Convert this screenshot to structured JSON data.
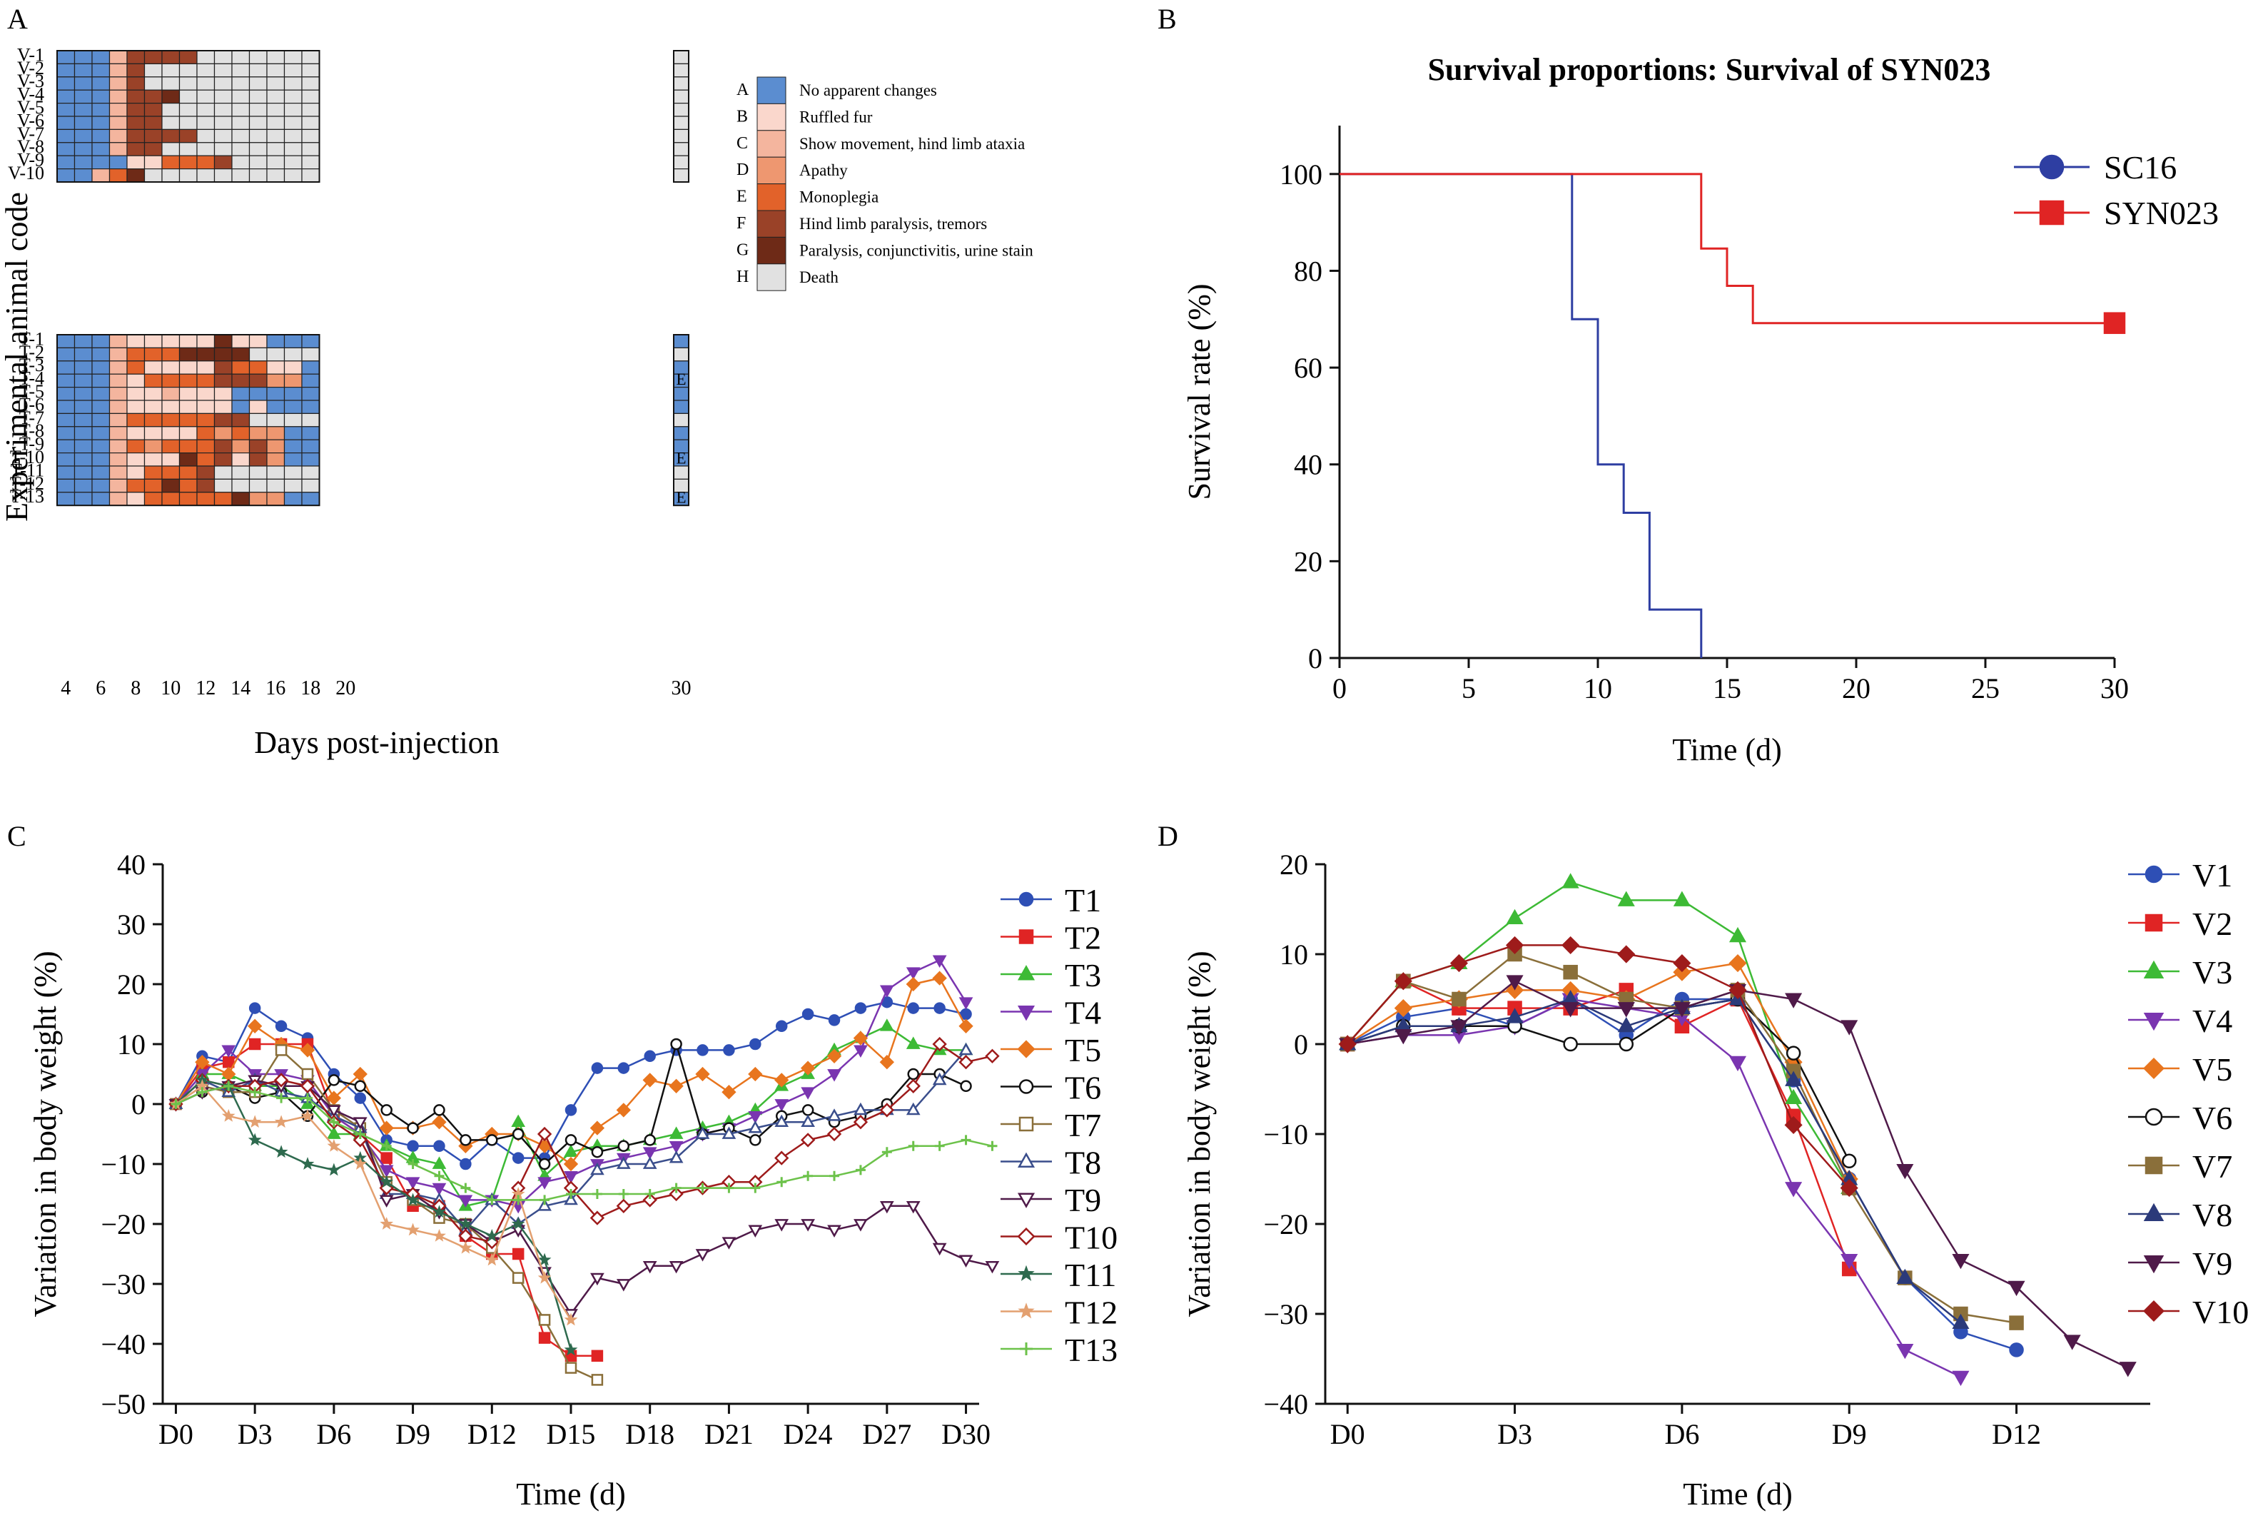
{
  "panels": {
    "a": "A",
    "b": "B",
    "c": "C",
    "d": "D"
  },
  "chart_data": [
    {
      "id": "A",
      "type": "heatmap",
      "ylabel": "Experimental animal code",
      "xlabel": "Days post-injection",
      "x_ticks": [
        "4",
        "6",
        "8",
        "10",
        "12",
        "14",
        "16",
        "18",
        "20"
      ],
      "x_tick_last": "30",
      "columns_main": 15,
      "legend": [
        {
          "code": "A",
          "label": "No apparent changes",
          "color": "#5B8DD0"
        },
        {
          "code": "B",
          "label": "Ruffled fur",
          "color": "#FAD7CC"
        },
        {
          "code": "C",
          "label": "Show movement, hind limb ataxia",
          "color": "#F4B59E"
        },
        {
          "code": "D",
          "label": "Apathy",
          "color": "#EE9770"
        },
        {
          "code": "E",
          "label": "Monoplegia",
          "color": "#E2622A"
        },
        {
          "code": "F",
          "label": "Hind limb paralysis, tremors",
          "color": "#9A4228"
        },
        {
          "code": "G",
          "label": "Paralysis, conjunctivitis, urine stain",
          "color": "#6E2A17"
        },
        {
          "code": "H",
          "label": "Death",
          "color": "#E1E1E1"
        }
      ],
      "groups": [
        {
          "rows": [
            {
              "code": "V-1",
              "cells": "AAACFFFFHHHHHHH",
              "last": "H",
              "mark": ""
            },
            {
              "code": "V-2",
              "cells": "AAACFHHHHHHHHHH",
              "last": "H",
              "mark": ""
            },
            {
              "code": "V-3",
              "cells": "AAACFHHHHHHHHHH",
              "last": "H",
              "mark": ""
            },
            {
              "code": "V-4",
              "cells": "AAACFFGHHHHHHHH",
              "last": "H",
              "mark": ""
            },
            {
              "code": "V-5",
              "cells": "AAACFFHHHHHHHHH",
              "last": "H",
              "mark": ""
            },
            {
              "code": "V-6",
              "cells": "AAACFFHHHHHHHHH",
              "last": "H",
              "mark": ""
            },
            {
              "code": "V-7",
              "cells": "AAACFFFFHHHHHHH",
              "last": "H",
              "mark": ""
            },
            {
              "code": "V-8",
              "cells": "AAACFFHHHHHHHHH",
              "last": "H",
              "mark": ""
            },
            {
              "code": "V-9",
              "cells": "AAAABBEEEFHHHHH",
              "last": "H",
              "mark": ""
            },
            {
              "code": "V-10",
              "cells": "AACEGHHHHHHHHHH",
              "last": "H",
              "mark": ""
            }
          ]
        },
        {
          "rows": [
            {
              "code": "T-1",
              "cells": "AAACBBBBBGBBAAA",
              "last": "A",
              "mark": ""
            },
            {
              "code": "T-2",
              "cells": "AAACEEEGGGGHHHH",
              "last": "H",
              "mark": ""
            },
            {
              "code": "T-3",
              "cells": "AAACEBBBBFEEBBA",
              "last": "A",
              "mark": ""
            },
            {
              "code": "T-4",
              "cells": "AAACBEEEEFFFDDA",
              "last": "A",
              "mark": "E"
            },
            {
              "code": "T-5",
              "cells": "AAACBBCBBBAAAAA",
              "last": "A",
              "mark": ""
            },
            {
              "code": "T-6",
              "cells": "AAACBBBBBBABAAA",
              "last": "A",
              "mark": ""
            },
            {
              "code": "T-7",
              "cells": "AAACEEEEEFFHHHH",
              "last": "H",
              "mark": ""
            },
            {
              "code": "T-8",
              "cells": "AAACBBBBEDEDDAA",
              "last": "A",
              "mark": ""
            },
            {
              "code": "T-9",
              "cells": "AAACEDEEEFDFDAA",
              "last": "A",
              "mark": ""
            },
            {
              "code": "T-10",
              "cells": "AAACBBBGEFBFDAA",
              "last": "A",
              "mark": "E"
            },
            {
              "code": "T-11",
              "cells": "AAACBEEEFHHHHHH",
              "last": "H",
              "mark": ""
            },
            {
              "code": "T-12",
              "cells": "AAACEEGEFHHHHHH",
              "last": "H",
              "mark": ""
            },
            {
              "code": "T-13",
              "cells": "AAACBEEEEEGDDAA",
              "last": "A",
              "mark": "E"
            }
          ]
        }
      ]
    },
    {
      "id": "B",
      "type": "line",
      "step": true,
      "title": "Survival proportions: Survival of SYN023",
      "xlabel": "Time (d)",
      "ylabel": "Survival rate (%)",
      "xlim": [
        0,
        30
      ],
      "ylim": [
        0,
        110
      ],
      "x_ticks": [
        0,
        5,
        10,
        15,
        20,
        25,
        30
      ],
      "y_ticks": [
        0,
        20,
        40,
        60,
        80,
        100
      ],
      "series": [
        {
          "name": "SC16",
          "color": "#2E3EA2",
          "marker": "circle",
          "x": [
            0,
            9,
            10,
            11,
            12,
            14
          ],
          "y": [
            100,
            70,
            40,
            30,
            10,
            0
          ]
        },
        {
          "name": "SYN023",
          "color": "#E02424",
          "marker": "square",
          "x": [
            0,
            14,
            15,
            16,
            30
          ],
          "y": [
            100,
            84.6,
            76.9,
            69.2,
            69.2
          ]
        }
      ]
    },
    {
      "id": "C",
      "type": "line",
      "xlabel": "Time (d)",
      "ylabel": "Variation in body weight (%)",
      "xlim": [
        -0.5,
        30.5
      ],
      "ylim": [
        -50,
        40
      ],
      "x_ticks": [
        0,
        3,
        6,
        9,
        12,
        15,
        18,
        21,
        24,
        27,
        30
      ],
      "x_tick_labels": [
        "D0",
        "D3",
        "D6",
        "D9",
        "D12",
        "D15",
        "D18",
        "D21",
        "D24",
        "D27",
        "D30"
      ],
      "y_ticks": [
        -50,
        -40,
        -30,
        -20,
        -10,
        0,
        10,
        20,
        30,
        40
      ],
      "series": [
        {
          "name": "T1",
          "color": "#2E4FB5",
          "marker": "circle",
          "y": [
            0,
            8,
            7,
            16,
            13,
            11,
            5,
            1,
            -6,
            -7,
            -7,
            -10,
            -6,
            -9,
            -9,
            -1,
            6,
            6,
            8,
            9,
            9,
            9,
            10,
            13,
            15,
            14,
            16,
            17,
            16,
            16,
            15
          ]
        },
        {
          "name": "T2",
          "color": "#E02424",
          "marker": "square",
          "y": [
            0,
            6,
            7,
            10,
            10,
            10,
            -2,
            -5,
            -9,
            -17,
            -17,
            -22,
            -25,
            -25,
            -39,
            -42,
            -42
          ]
        },
        {
          "name": "T3",
          "color": "#3DBA35",
          "marker": "triangle",
          "y": [
            0,
            5,
            5,
            3,
            3,
            0,
            -5,
            -5,
            -7,
            -9,
            -10,
            -17,
            -16,
            -3,
            -12,
            -8,
            -7,
            -7,
            -6,
            -5,
            -4,
            -3,
            -1,
            3,
            5,
            9,
            11,
            13,
            10,
            9,
            9
          ]
        },
        {
          "name": "T4",
          "color": "#7A35B0",
          "marker": "triangle-down",
          "y": [
            0,
            5,
            9,
            5,
            5,
            4,
            -2,
            -5,
            -11,
            -13,
            -14,
            -16,
            -16,
            -17,
            -13,
            -12,
            -10,
            -9,
            -8,
            -7,
            -5,
            -4,
            -2,
            0,
            2,
            5,
            9,
            19,
            22,
            24,
            17
          ]
        },
        {
          "name": "T5",
          "color": "#E8751E",
          "marker": "diamond",
          "y": [
            0,
            7,
            5,
            13,
            10,
            9,
            1,
            5,
            -4,
            -4,
            -3,
            -7,
            -5,
            -5,
            -7,
            -10,
            -4,
            -1,
            4,
            3,
            5,
            2,
            5,
            4,
            6,
            8,
            11,
            7,
            20,
            21,
            13
          ]
        },
        {
          "name": "T6",
          "color": "#111111",
          "marker": "open-circle",
          "y": [
            0,
            2,
            3,
            1,
            2,
            -2,
            4,
            3,
            -1,
            -4,
            -1,
            -6,
            -6,
            -5,
            -10,
            -6,
            -8,
            -7,
            -6,
            10,
            -5,
            -4,
            -6,
            -2,
            -1,
            -3,
            -2,
            0,
            5,
            5,
            3
          ]
        },
        {
          "name": "T7",
          "color": "#8A6F3A",
          "marker": "open-square",
          "y": [
            0,
            3,
            2,
            2,
            9,
            5,
            -1,
            -4,
            -13,
            -16,
            -19,
            -20,
            -24,
            -29,
            -36,
            -44,
            -46
          ]
        },
        {
          "name": "T8",
          "color": "#3A4E8C",
          "marker": "open-triangle",
          "y": [
            0,
            4,
            2,
            4,
            2,
            1,
            -2,
            -4,
            -15,
            -15,
            -16,
            -21,
            -16,
            -20,
            -17,
            -16,
            -11,
            -10,
            -10,
            -9,
            -5,
            -5,
            -4,
            -3,
            -3,
            -2,
            -1,
            -1,
            -1,
            4,
            9
          ]
        },
        {
          "name": "T9",
          "color": "#4F1A49",
          "marker": "open-triangle-down",
          "y": [
            0,
            2,
            3,
            4,
            3,
            3,
            -1,
            -3,
            -16,
            -15,
            -18,
            -20,
            -23,
            -21,
            -28,
            -35,
            -29,
            -30,
            -27,
            -27,
            -25,
            -23,
            -21,
            -20,
            -20,
            -21,
            -20,
            -17,
            -17,
            -24,
            -26,
            -27
          ]
        },
        {
          "name": "T10",
          "color": "#9E1B1B",
          "marker": "open-diamond",
          "y": [
            0,
            4,
            3,
            3,
            4,
            3,
            -3,
            -6,
            -14,
            -15,
            -17,
            -22,
            -23,
            -14,
            -5,
            -14,
            -19,
            -17,
            -16,
            -15,
            -14,
            -13,
            -13,
            -9,
            -6,
            -5,
            -3,
            -1,
            3,
            10,
            7,
            8
          ]
        },
        {
          "name": "T11",
          "color": "#2E6A4E",
          "marker": "star",
          "y": [
            0,
            4,
            3,
            -6,
            -8,
            -10,
            -11,
            -9,
            -13,
            -16,
            -18,
            -20,
            -22,
            -20,
            -26,
            -41
          ]
        },
        {
          "name": "T12",
          "color": "#E3A070",
          "marker": "star",
          "y": [
            0,
            3,
            -2,
            -3,
            -3,
            -2,
            -7,
            -10,
            -20,
            -21,
            -22,
            -24,
            -26,
            -15,
            -29,
            -36
          ]
        },
        {
          "name": "T13",
          "color": "#6CC24A",
          "marker": "plus",
          "y": [
            0,
            2,
            3,
            2,
            1,
            1,
            -3,
            -5,
            -7,
            -10,
            -12,
            -14,
            -16,
            -16,
            -16,
            -15,
            -15,
            -15,
            -15,
            -14,
            -14,
            -14,
            -14,
            -13,
            -12,
            -12,
            -11,
            -8,
            -7,
            -7,
            -6,
            -7
          ]
        }
      ]
    },
    {
      "id": "D",
      "type": "line",
      "xlabel": "Time (d)",
      "ylabel": "Variation in body weight (%)",
      "xlim": [
        -0.4,
        14.4
      ],
      "ylim": [
        -40,
        20
      ],
      "x_ticks": [
        0,
        3,
        6,
        9,
        12
      ],
      "x_tick_labels": [
        "D0",
        "D3",
        "D6",
        "D9",
        "D12"
      ],
      "y_ticks": [
        -40,
        -30,
        -20,
        -10,
        0,
        10,
        20
      ],
      "series": [
        {
          "name": "V1",
          "color": "#2E4FB5",
          "marker": "circle",
          "y": [
            0,
            3,
            4,
            2,
            5,
            1,
            5,
            5,
            -4,
            -15,
            -26,
            -32,
            -34
          ]
        },
        {
          "name": "V2",
          "color": "#E02424",
          "marker": "square",
          "y": [
            0,
            7,
            4,
            4,
            4,
            6,
            2,
            5,
            -8,
            -25
          ]
        },
        {
          "name": "V3",
          "color": "#3DBA35",
          "marker": "triangle",
          "y": [
            0,
            7,
            9,
            14,
            18,
            16,
            16,
            12,
            -6,
            -16
          ]
        },
        {
          "name": "V4",
          "color": "#7A35B0",
          "marker": "triangle-down",
          "y": [
            0,
            1,
            1,
            2,
            5,
            4,
            3,
            -2,
            -16,
            -24,
            -34,
            -37
          ]
        },
        {
          "name": "V5",
          "color": "#E8751E",
          "marker": "diamond",
          "y": [
            0,
            4,
            5,
            6,
            6,
            5,
            8,
            9,
            -2,
            -15
          ]
        },
        {
          "name": "V6",
          "color": "#111111",
          "marker": "open-circle",
          "y": [
            0,
            2,
            2,
            2,
            0,
            0,
            4,
            5,
            -1,
            -13
          ]
        },
        {
          "name": "V7",
          "color": "#8A6F3A",
          "marker": "square",
          "y": [
            0,
            7,
            5,
            10,
            8,
            5,
            4,
            6,
            -3,
            -16,
            -26,
            -30,
            -31
          ]
        },
        {
          "name": "V8",
          "color": "#2B3A7A",
          "marker": "triangle",
          "y": [
            0,
            2,
            2,
            3,
            5,
            2,
            4,
            5,
            -4,
            -15,
            -26,
            -31
          ]
        },
        {
          "name": "V9",
          "color": "#4F1A49",
          "marker": "triangle-down",
          "y": [
            0,
            1,
            2,
            7,
            4,
            4,
            4,
            6,
            5,
            2,
            -14,
            -24,
            -27,
            -33,
            -36
          ]
        },
        {
          "name": "V10",
          "color": "#9E1B1B",
          "marker": "diamond",
          "y": [
            0,
            7,
            9,
            11,
            11,
            10,
            9,
            6,
            -9,
            -16
          ]
        }
      ]
    }
  ]
}
